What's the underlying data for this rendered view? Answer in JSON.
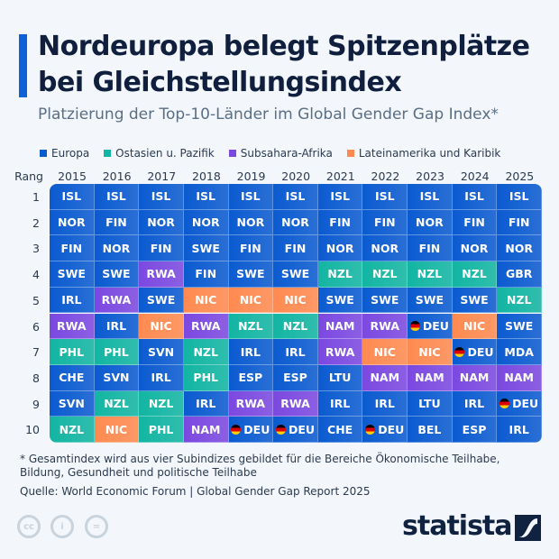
{
  "header": {
    "title": "Nordeuropa belegt Spitzenplätze bei Gleichstellungsindex",
    "subtitle": "Platzierung der Top-10-Länder im Global Gender Gap Index*"
  },
  "chart_data": {
    "type": "table",
    "legend": [
      {
        "key": "europa",
        "label": "Europa",
        "color": "#0a5ad0"
      },
      {
        "key": "ostasien",
        "label": "Ostasien u. Pazifik",
        "color": "#12b5a2"
      },
      {
        "key": "afrika",
        "label": "Subsahara-Afrika",
        "color": "#7b48e0"
      },
      {
        "key": "latam",
        "label": "Lateinamerika und Karibik",
        "color": "#ff8a50"
      }
    ],
    "row_header": "Rang",
    "years": [
      "2015",
      "2016",
      "2017",
      "2018",
      "2019",
      "2020",
      "2021",
      "2022",
      "2023",
      "2024",
      "2025"
    ],
    "ranks": [
      "1",
      "2",
      "3",
      "4",
      "5",
      "6",
      "7",
      "8",
      "9",
      "10"
    ],
    "region_of": {
      "ISL": "europa",
      "NOR": "europa",
      "FIN": "europa",
      "SWE": "europa",
      "IRL": "europa",
      "CHE": "europa",
      "SVN": "europa",
      "GBR": "europa",
      "ESP": "europa",
      "DEU": "europa",
      "LTU": "europa",
      "BEL": "europa",
      "MDA": "europa",
      "NZL": "ostasien",
      "PHL": "ostasien",
      "RWA": "afrika",
      "NAM": "afrika",
      "NIC": "latam"
    },
    "highlight_flag": "DEU",
    "rows": [
      [
        "ISL",
        "ISL",
        "ISL",
        "ISL",
        "ISL",
        "ISL",
        "ISL",
        "ISL",
        "ISL",
        "ISL",
        "ISL"
      ],
      [
        "NOR",
        "FIN",
        "NOR",
        "NOR",
        "NOR",
        "NOR",
        "FIN",
        "FIN",
        "NOR",
        "FIN",
        "FIN"
      ],
      [
        "FIN",
        "NOR",
        "FIN",
        "SWE",
        "FIN",
        "FIN",
        "NOR",
        "NOR",
        "FIN",
        "NOR",
        "NOR"
      ],
      [
        "SWE",
        "SWE",
        "RWA",
        "FIN",
        "SWE",
        "SWE",
        "NZL",
        "NZL",
        "NZL",
        "NZL",
        "GBR"
      ],
      [
        "IRL",
        "RWA",
        "SWE",
        "NIC",
        "NIC",
        "NIC",
        "SWE",
        "SWE",
        "SWE",
        "SWE",
        "NZL"
      ],
      [
        "RWA",
        "IRL",
        "NIC",
        "RWA",
        "NZL",
        "NZL",
        "NAM",
        "RWA",
        "DEU",
        "NIC",
        "SWE"
      ],
      [
        "PHL",
        "PHL",
        "SVN",
        "NZL",
        "IRL",
        "IRL",
        "RWA",
        "NIC",
        "NIC",
        "DEU",
        "MDA"
      ],
      [
        "CHE",
        "SVN",
        "IRL",
        "PHL",
        "ESP",
        "ESP",
        "LTU",
        "NAM",
        "NAM",
        "NAM",
        "NAM"
      ],
      [
        "SVN",
        "NZL",
        "NZL",
        "IRL",
        "RWA",
        "RWA",
        "IRL",
        "IRL",
        "LTU",
        "IRL",
        "DEU"
      ],
      [
        "NZL",
        "NIC",
        "PHL",
        "NAM",
        "DEU",
        "DEU",
        "CHE",
        "DEU",
        "BEL",
        "ESP",
        "IRL"
      ]
    ]
  },
  "footer": {
    "note": "* Gesamtindex wird aus vier Subindizes gebildet für die Bereiche Ökonomische Teilhabe, Bildung, Gesundheit und politische Teilhabe",
    "source": "Quelle: World Economic Forum | Global Gender Gap Report 2025",
    "logo": "statista",
    "cc_icons": [
      "cc-icon",
      "by-icon",
      "nd-icon"
    ]
  }
}
